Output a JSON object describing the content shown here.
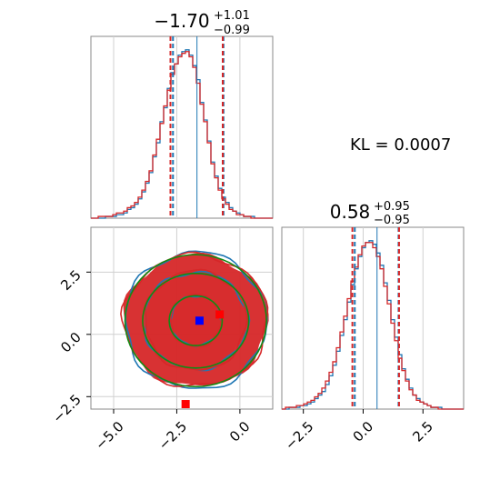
{
  "chart_data": [
    {
      "type": "histogram",
      "panel": "top-left",
      "title_main": "−1.70",
      "title_sup": "+1.01",
      "title_sub": "−0.99",
      "xlim": [
        -5.9,
        1.3
      ],
      "grid": true,
      "series": [
        {
          "name": "blue",
          "color": "#1f77b4",
          "bin_start": -5.9,
          "bin_width": 0.144,
          "heights": [
            0,
            0,
            0,
            0,
            1,
            1,
            1,
            2,
            2,
            3,
            5,
            6,
            8,
            11,
            15,
            20,
            26,
            35,
            43,
            55,
            63,
            74,
            83,
            88,
            93,
            95,
            96,
            93,
            87,
            79,
            66,
            56,
            44,
            32,
            24,
            17,
            12,
            9,
            6,
            4,
            3,
            2,
            1,
            1,
            1,
            0,
            0,
            0,
            0,
            0
          ],
          "quantile_lines": [
            -2.65,
            -1.7,
            -0.65
          ]
        },
        {
          "name": "red",
          "color": "#d62728",
          "bin_start": -5.9,
          "bin_width": 0.144,
          "heights": [
            0,
            0,
            1,
            1,
            1,
            1,
            2,
            3,
            3,
            4,
            6,
            7,
            9,
            12,
            16,
            21,
            27,
            36,
            45,
            54,
            64,
            73,
            82,
            88,
            92,
            94,
            95,
            92,
            86,
            77,
            65,
            55,
            43,
            31,
            23,
            16,
            11,
            8,
            5,
            4,
            2,
            2,
            1,
            1,
            0,
            0,
            0,
            0,
            0,
            0
          ],
          "quantile_lines": [
            -2.75,
            -0.68
          ]
        }
      ]
    },
    {
      "type": "contour",
      "panel": "bottom-left",
      "xlim": [
        -5.9,
        1.3
      ],
      "ylim": [
        -3.0,
        4.3
      ],
      "xticks": [
        "−5.0",
        "−2.5",
        "0.0"
      ],
      "yticks": [
        "−2.5",
        "0.0",
        "2.5"
      ],
      "xtick_values": [
        -5.0,
        -2.5,
        0.0
      ],
      "ytick_values": [
        -2.5,
        0.0,
        2.5
      ],
      "grid": true,
      "center": {
        "x": -1.75,
        "y": 0.55
      },
      "contour_series": [
        {
          "name": "blue",
          "color": "#1f77b4",
          "rx": [
            1.0,
            2.05,
            2.8
          ],
          "ry": [
            1.0,
            1.95,
            2.75
          ]
        },
        {
          "name": "red",
          "color": "#d62728",
          "rx": [
            1.0,
            2.0,
            2.85
          ],
          "ry": [
            1.05,
            2.0,
            2.65
          ]
        },
        {
          "name": "green",
          "color": "#138a13",
          "rx": [
            1.05,
            2.1,
            2.8
          ],
          "ry": [
            1.0,
            1.9,
            2.65
          ]
        }
      ],
      "markers": [
        {
          "color": "#0000ff",
          "x": -1.6,
          "y": 0.55
        },
        {
          "color": "#ff0000",
          "x": -0.8,
          "y": 0.8
        },
        {
          "color": "#ff0000",
          "x": -2.15,
          "y": -2.8
        }
      ]
    },
    {
      "type": "histogram",
      "panel": "bottom-right",
      "title_main": "0.58",
      "title_sup": "+0.95",
      "title_sub": "−0.95",
      "xlim": [
        -3.4,
        4.2
      ],
      "xticks": [
        "−2.5",
        "0.0",
        "2.5"
      ],
      "xtick_values": [
        -2.5,
        0.0,
        2.5
      ],
      "grid": true,
      "series": [
        {
          "name": "blue",
          "color": "#1f77b4",
          "bin_start": -3.4,
          "bin_width": 0.152,
          "heights": [
            0,
            0,
            1,
            1,
            1,
            2,
            2,
            3,
            4,
            6,
            8,
            10,
            14,
            19,
            25,
            33,
            42,
            51,
            61,
            71,
            80,
            87,
            92,
            95,
            96,
            94,
            89,
            82,
            72,
            62,
            51,
            41,
            31,
            23,
            17,
            12,
            8,
            6,
            4,
            3,
            2,
            1,
            1,
            1,
            0,
            0,
            0,
            0,
            0,
            0
          ],
          "quantile_lines": [
            -0.35,
            0.58,
            1.48
          ]
        },
        {
          "name": "red",
          "color": "#d62728",
          "bin_start": -3.4,
          "bin_width": 0.152,
          "heights": [
            0,
            1,
            1,
            1,
            2,
            2,
            3,
            4,
            5,
            7,
            9,
            12,
            16,
            21,
            27,
            35,
            44,
            53,
            63,
            73,
            81,
            88,
            93,
            95,
            95,
            92,
            87,
            80,
            70,
            60,
            49,
            39,
            29,
            22,
            16,
            11,
            8,
            5,
            4,
            3,
            2,
            1,
            1,
            0,
            0,
            0,
            0,
            0,
            0,
            0
          ],
          "quantile_lines": [
            -0.45,
            1.5
          ]
        }
      ]
    }
  ],
  "annotation": "KL = 0.0007"
}
